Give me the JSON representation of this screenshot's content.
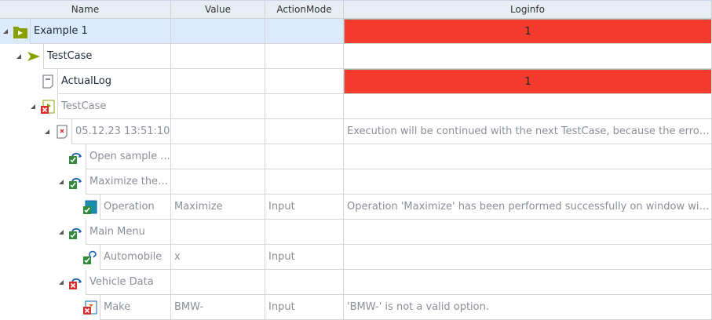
{
  "columns": [
    "Name",
    "Value",
    "ActionMode",
    "Loginfo"
  ],
  "colors": {
    "error": "#f33c2e",
    "selected": "#dbeafc",
    "passed": "#2e8b3a",
    "failed": "#d32f2f",
    "testcase": "#8aa000"
  },
  "rows": [
    {
      "name": "Example 1",
      "value": "",
      "mode": "",
      "log": "1",
      "icon": "folder-execution-icon",
      "level": 0,
      "expand": true,
      "dark": true,
      "selected": true,
      "error": true
    },
    {
      "name": "TestCase",
      "value": "",
      "mode": "",
      "log": "",
      "icon": "testcase-play-icon",
      "level": 1,
      "expand": true,
      "dark": true
    },
    {
      "name": "ActualLog",
      "value": "",
      "mode": "",
      "log": "1",
      "icon": "log-document-icon",
      "level": 2,
      "expand": false,
      "dark": true,
      "error": true
    },
    {
      "name": "TestCase",
      "value": "",
      "mode": "",
      "log": "",
      "icon": "testcase-failed-icon",
      "level": 2,
      "expand": true
    },
    {
      "name": "05.12.23 13:51:10",
      "value": "",
      "mode": "",
      "log": "Execution will be continued with the next TestCase, because the error sit...",
      "icon": "execution-log-failed-icon",
      "level": 3,
      "expand": true
    },
    {
      "name": "Open sample ...",
      "value": "",
      "mode": "",
      "log": "",
      "icon": "teststep-passed-icon",
      "level": 4,
      "expand": false
    },
    {
      "name": "Maximize the ...",
      "value": "",
      "mode": "",
      "log": "",
      "icon": "teststep-passed-icon",
      "level": 4,
      "expand": true
    },
    {
      "name": "Operation",
      "value": "Maximize",
      "mode": "Input",
      "log": "Operation 'Maximize' has been performed successfully on window with c...",
      "icon": "window-operation-passed-icon",
      "level": 5,
      "expand": false
    },
    {
      "name": "Main Menu",
      "value": "",
      "mode": "",
      "log": "",
      "icon": "teststep-passed-icon",
      "level": 4,
      "expand": true
    },
    {
      "name": "Automobile",
      "value": "x",
      "mode": "Input",
      "log": "",
      "icon": "link-passed-icon",
      "level": 5,
      "expand": false
    },
    {
      "name": "Vehicle Data",
      "value": "",
      "mode": "",
      "log": "",
      "icon": "teststep-failed-icon",
      "level": 4,
      "expand": true
    },
    {
      "name": "Make",
      "value": "BMW-",
      "mode": "Input",
      "log": "'BMW-' is not a valid option.",
      "icon": "combobox-failed-icon",
      "level": 5,
      "expand": false
    }
  ]
}
